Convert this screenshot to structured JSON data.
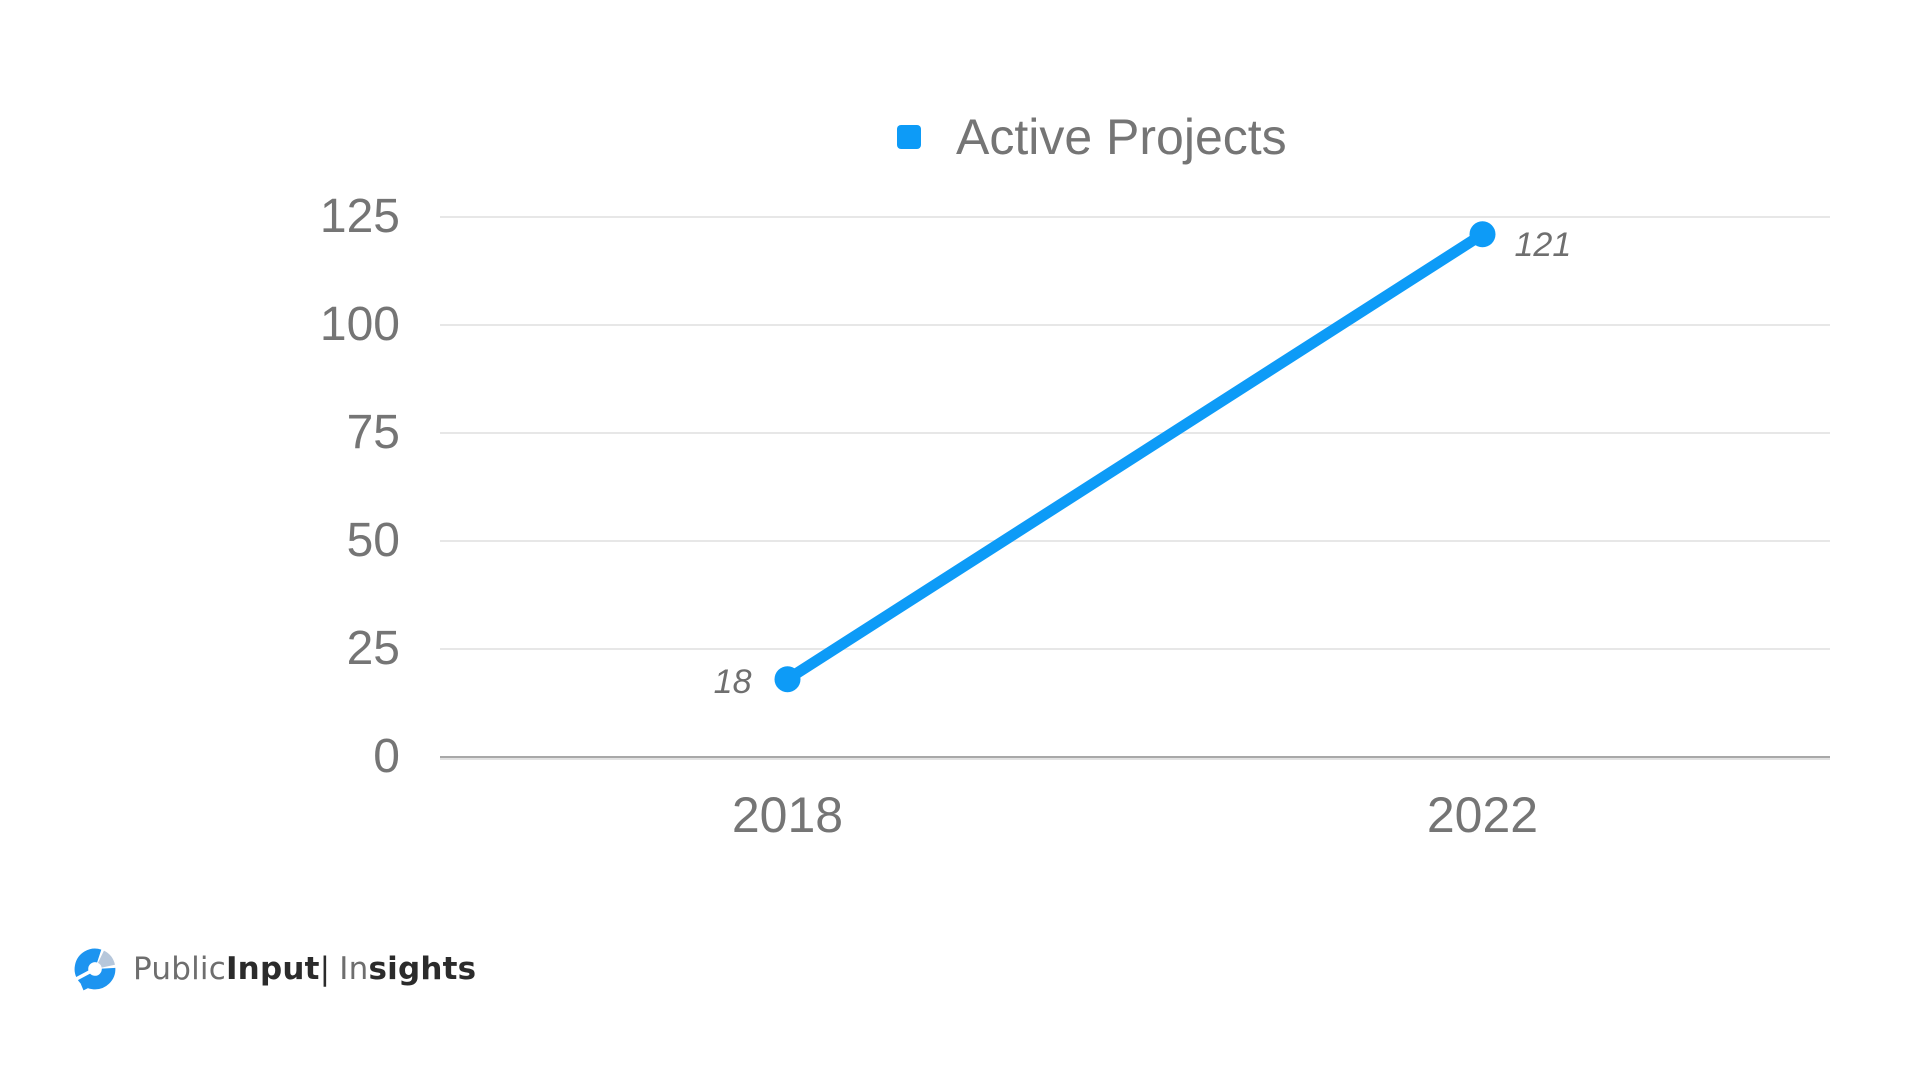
{
  "colors": {
    "accent": "#0d9bf7",
    "axis_text": "#757575",
    "grid": "#e7e7e7",
    "baseline": "#a8a8a8",
    "point_label": "#6f6f6f",
    "logo_blue": "#1d94f0",
    "logo_light_segment": "#b6c7db",
    "logo_text_gray": "#6e6e6e",
    "logo_text_dark": "#2b2b2b",
    "background": "#ffffff"
  },
  "legend": {
    "label": "Active Projects"
  },
  "logo": {
    "brand_light": "Public",
    "brand_bold": "Input",
    "pipe": "|",
    "product_light": "In",
    "product_bold": "sights"
  },
  "chart_data": {
    "type": "line",
    "title": "",
    "xlabel": "",
    "ylabel": "",
    "categories": [
      "2018",
      "2022"
    ],
    "series": [
      {
        "name": "Active Projects",
        "values": [
          18,
          121
        ],
        "color": "#0d9bf7",
        "point_labels": [
          "18",
          "121"
        ],
        "label_sides": [
          "left",
          "right"
        ]
      }
    ],
    "ylim": [
      0,
      125
    ],
    "yticks": [
      0,
      25,
      50,
      75,
      100,
      125
    ],
    "grid": true,
    "legend_position": "top"
  }
}
